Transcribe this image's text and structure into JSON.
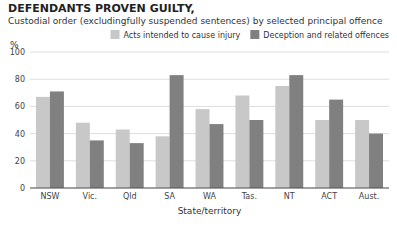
{
  "chart_data": {
    "type": "bar",
    "title": "DEFENDANTS PROVEN GUILTY,",
    "subtitle": "Custodial order (excludingfully suspended sentences) by selected principal offence",
    "xlabel": "State/territory",
    "ylabel": "%",
    "categories": [
      "NSW",
      "Vic.",
      "Qld",
      "SA",
      "WA",
      "Tas.",
      "NT",
      "ACT",
      "Aust."
    ],
    "series": [
      {
        "name": "Acts intended to cause injury",
        "color": "#c8c8c8",
        "values": [
          67,
          48,
          43,
          38,
          58,
          68,
          75,
          50,
          50
        ]
      },
      {
        "name": "Deception and related offences",
        "color": "#808080",
        "values": [
          71,
          35,
          33,
          83,
          47,
          50,
          83,
          65,
          40
        ]
      }
    ],
    "ylim": [
      0,
      100
    ],
    "yticks": [
      0,
      20,
      40,
      60,
      80,
      100
    ],
    "grid": true,
    "legend": "upper right"
  }
}
